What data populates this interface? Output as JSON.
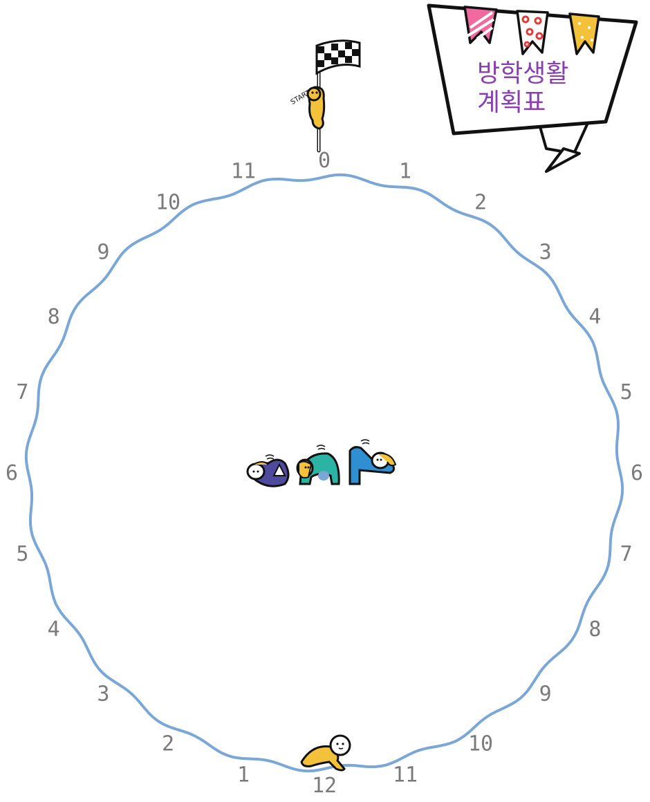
{
  "title": {
    "line1": "방학생활",
    "line2": "계획표"
  },
  "start_flag_label": "START",
  "clock": {
    "right_labels": [
      "0",
      "1",
      "2",
      "3",
      "4",
      "5",
      "6",
      "7",
      "8",
      "9",
      "10",
      "11",
      "12"
    ],
    "left_labels": [
      "1",
      "2",
      "3",
      "4",
      "5",
      "6",
      "7",
      "8",
      "9",
      "10",
      "11"
    ]
  },
  "colors": {
    "ring": "#7aa7d6",
    "title": "#8a3fb0",
    "label": "#7a7a7a",
    "yellow": "#f3c13a",
    "purple": "#4f4a9e",
    "teal": "#2bb3a3",
    "blue": "#2f8fd0",
    "pink": "#f06aa0",
    "red": "#e03a3a"
  },
  "icons": [
    "start-flag-icon",
    "crawling-character-icon",
    "stretching-characters-icon",
    "pennant-banner-icon"
  ]
}
